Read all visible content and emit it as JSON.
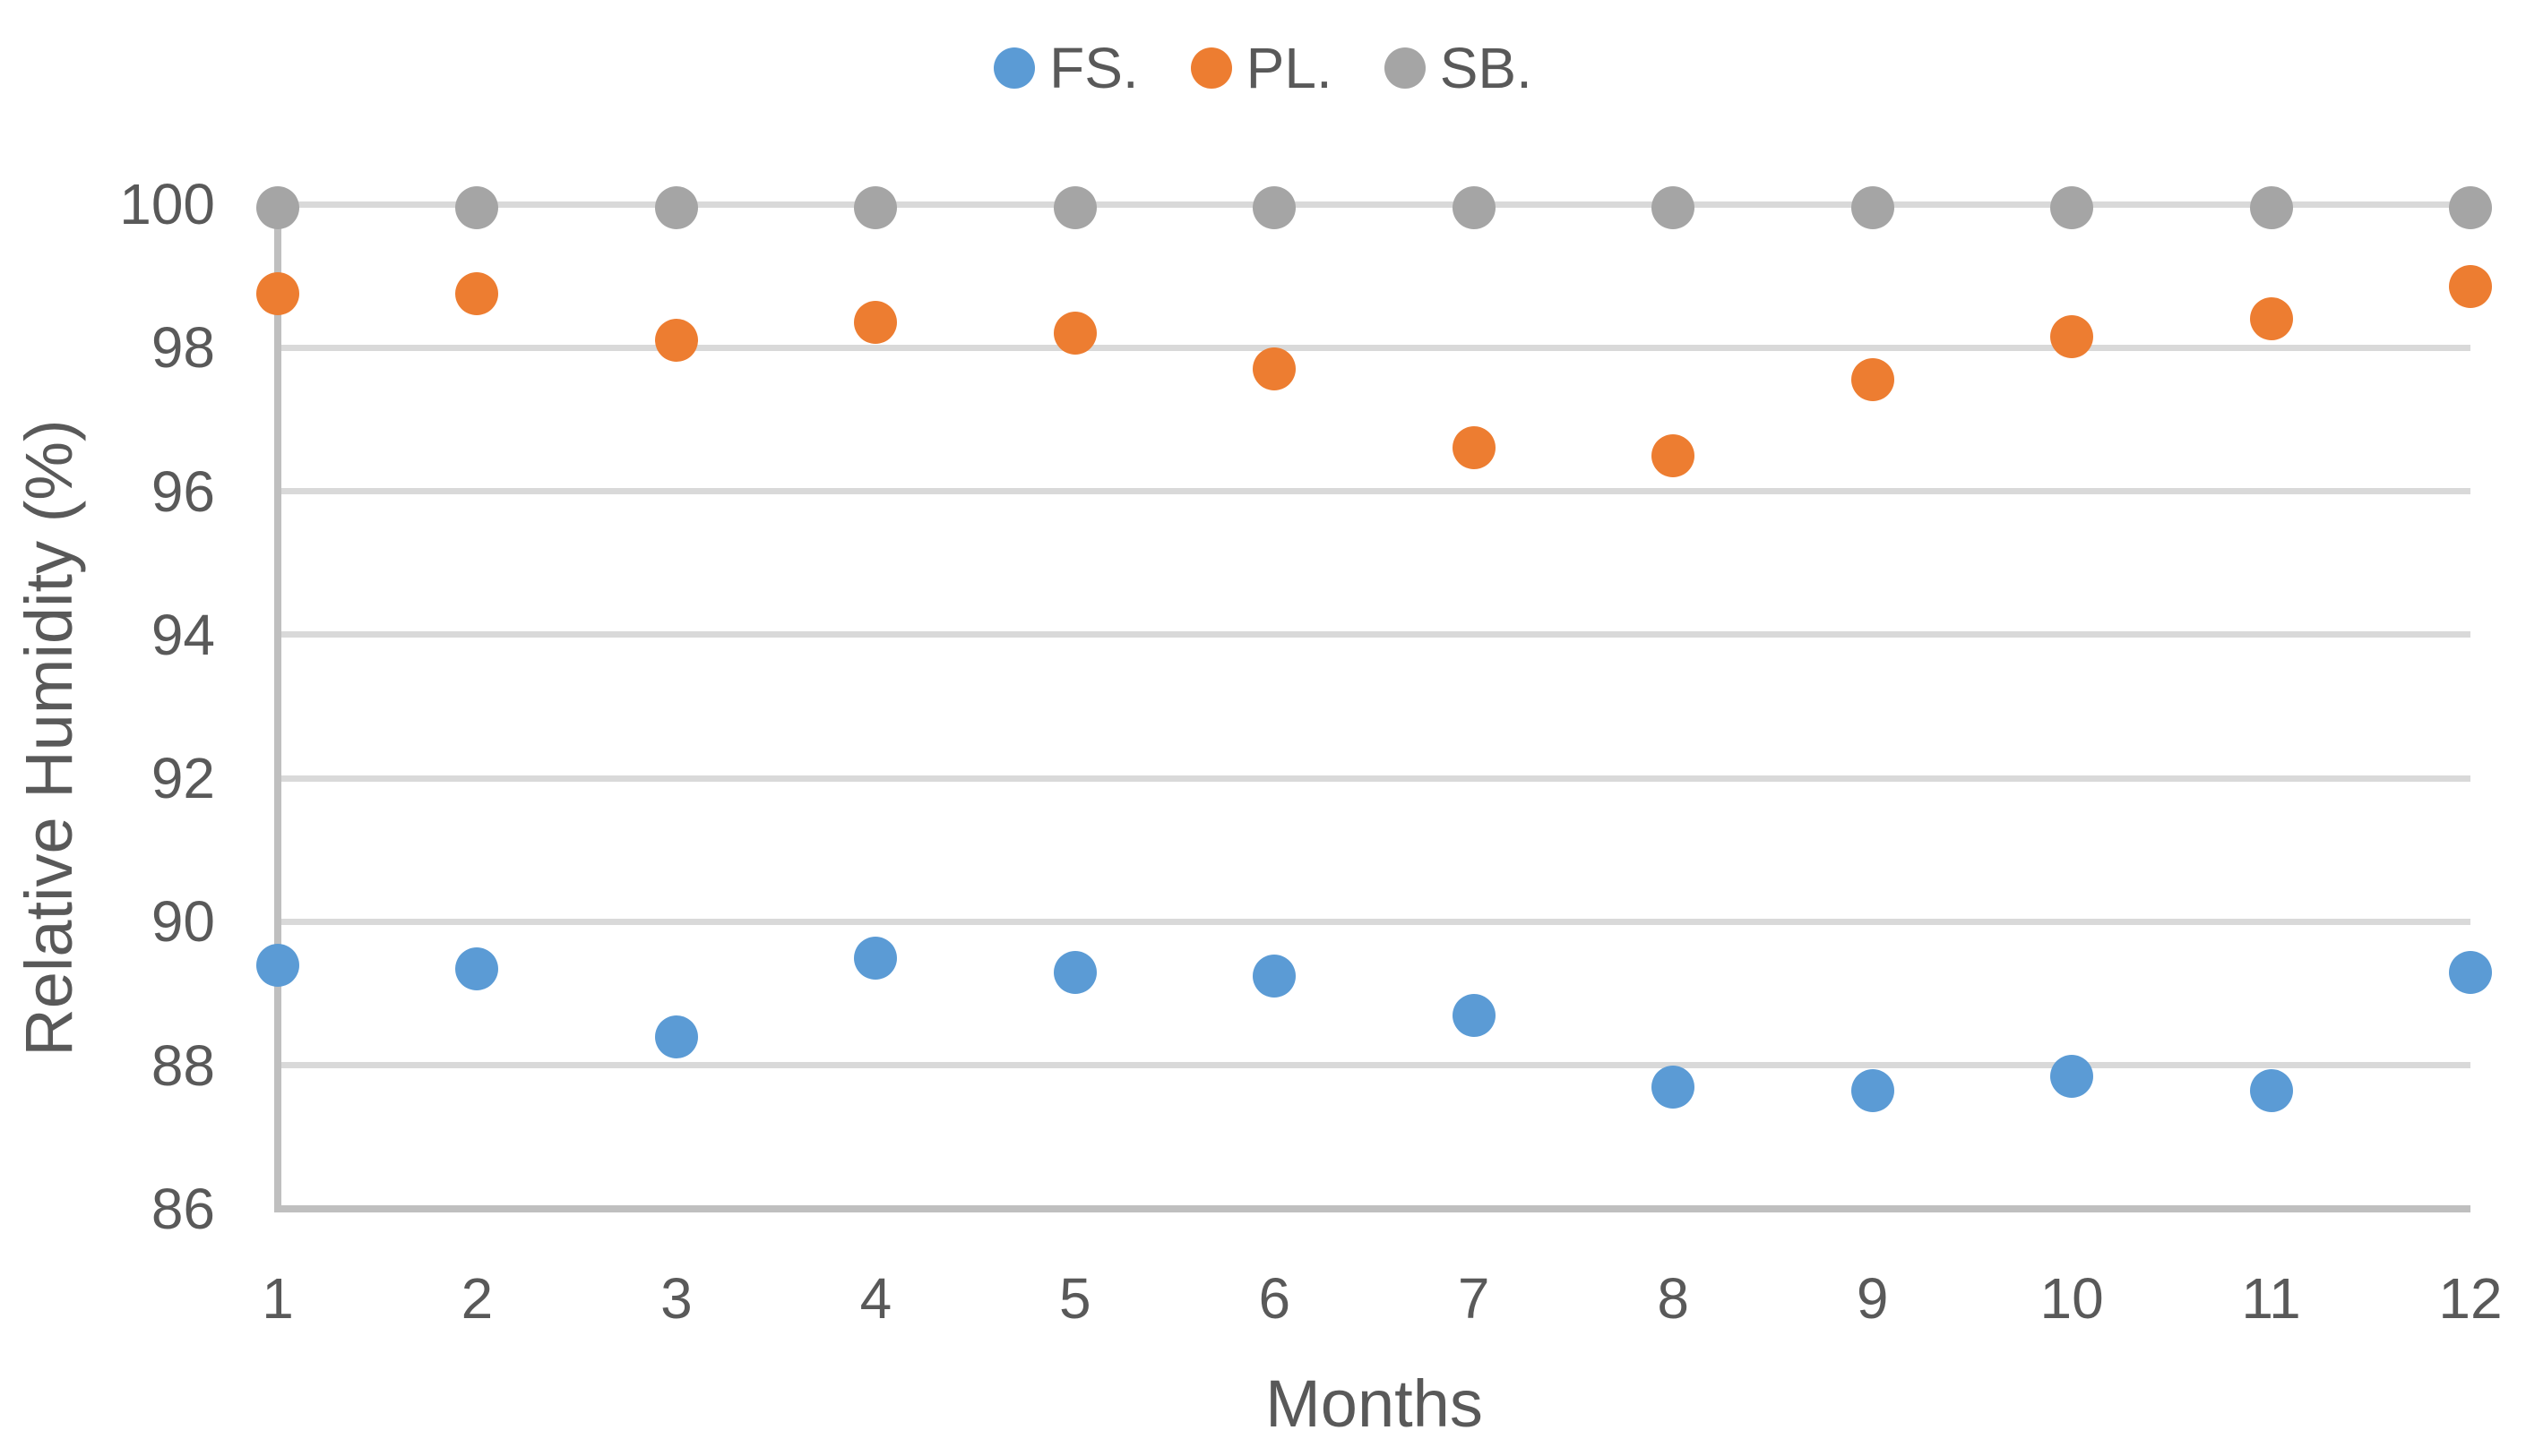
{
  "chart_data": {
    "type": "scatter",
    "title": "",
    "xlabel": "Months",
    "ylabel": "Relative Humidity (%)",
    "x": [
      1,
      2,
      3,
      4,
      5,
      6,
      7,
      8,
      9,
      10,
      11,
      12
    ],
    "xticks": [
      1,
      2,
      3,
      4,
      5,
      6,
      7,
      8,
      9,
      10,
      11,
      12
    ],
    "yticks": [
      100,
      98,
      96,
      94,
      92,
      90,
      88,
      86
    ],
    "ylim": [
      86,
      100
    ],
    "grid": "horizontal",
    "legend_position": "top-center",
    "series": [
      {
        "name": "FS.",
        "color": "#5B9BD5",
        "values": [
          89.4,
          89.35,
          88.4,
          89.5,
          89.3,
          89.25,
          88.7,
          87.7,
          87.65,
          87.85,
          87.65,
          89.3
        ]
      },
      {
        "name": "PL.",
        "color": "#ED7D31",
        "values": [
          98.75,
          98.75,
          98.1,
          98.35,
          98.2,
          97.7,
          96.6,
          96.5,
          97.55,
          98.15,
          98.4,
          98.85
        ]
      },
      {
        "name": "SB.",
        "color": "#A5A5A5",
        "values": [
          99.95,
          99.95,
          99.95,
          99.95,
          99.95,
          99.95,
          99.95,
          99.95,
          99.95,
          99.95,
          99.95,
          99.95
        ]
      }
    ]
  },
  "colors": {
    "gridline": "#D9D9D9",
    "axis_line": "#BFBFBF",
    "text": "#595959",
    "background": "#FFFFFF"
  }
}
